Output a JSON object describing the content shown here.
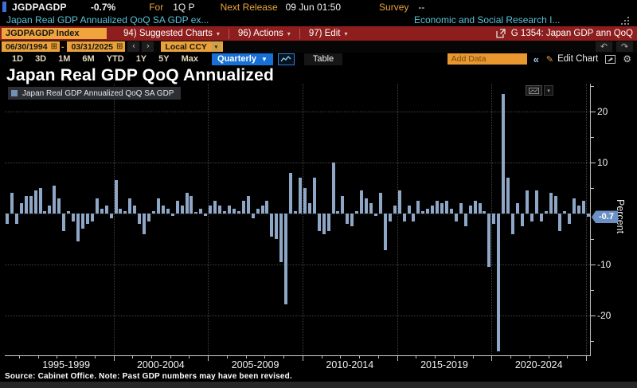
{
  "header": {
    "ticker": "JGDPAGDP",
    "last_change": "-0.7%",
    "for_label": "For",
    "for_value": "1Q P",
    "next_release_label": "Next Release",
    "next_release_value": "09 Jun 01:50",
    "survey_label": "Survey",
    "survey_value": "--",
    "description": "Japan Real GDP Annualized QoQ SA GDP ex...",
    "source_org": "Economic and Social Research I..."
  },
  "menubar": {
    "ticker_box": "JGDPAGDP Index",
    "items": [
      "94) Suggested Charts",
      "96) Actions",
      "97) Edit"
    ],
    "chart_tag": "G 1354: Japan GDP ann QoQ"
  },
  "toolbar": {
    "date_from": "06/30/1994",
    "date_to": "03/31/2025",
    "currency": "Local CCY",
    "periods": [
      "1D",
      "3D",
      "1M",
      "6M",
      "YTD",
      "1Y",
      "5Y",
      "Max"
    ],
    "frequency": "Quarterly",
    "table_label": "Table",
    "add_data_placeholder": "Add Data",
    "edit_chart_label": "Edit Chart"
  },
  "chart": {
    "title": "Japan Real GDP QoQ Annualized",
    "legend": "Japan Real GDP Annualized QoQ SA GDP",
    "unit_label": "Percent",
    "last_badge": "-0.7",
    "source_note": "Source: Cabinet Office. Note: Past GDP numbers may have been revised."
  },
  "chart_data": {
    "type": "bar",
    "title": "Japan Real GDP QoQ Annualized",
    "ylabel": "Percent",
    "ylim": [
      -28,
      25.5
    ],
    "grid": true,
    "legend_position": "top-left",
    "y_gridlines": [
      20,
      10,
      0,
      -10,
      -20
    ],
    "y_labels": [
      {
        "v": 20,
        "t": "20"
      },
      {
        "v": 10,
        "t": "10"
      },
      {
        "v": -10,
        "t": "-10"
      },
      {
        "v": -20,
        "t": "-20"
      }
    ],
    "x_group_labels": [
      "1995-1999",
      "2000-2004",
      "2005-2009",
      "2010-2014",
      "2015-2019",
      "2020-2024"
    ],
    "year_boundary_indices": [
      23,
      43,
      63,
      83,
      103,
      123
    ],
    "start_period": "1994 Q2",
    "end_period": "2025 Q1",
    "frequency": "quarterly",
    "last_value": -0.7,
    "bar_color": "#8ea7c6",
    "values": [
      -2,
      4,
      -2,
      2,
      3.5,
      3.5,
      4.5,
      5,
      0.5,
      1.5,
      5.5,
      3,
      -3.5,
      0.5,
      -1.5,
      -5.5,
      -3,
      -2,
      -1.5,
      3,
      1,
      1.5,
      -1,
      6.5,
      1,
      0.5,
      3,
      1.5,
      -2,
      -4,
      -1.5,
      0.5,
      3,
      1.5,
      1,
      -0.5,
      2.5,
      1.5,
      4,
      3.5,
      0.3,
      1,
      -0.5,
      1.5,
      2.5,
      1.5,
      0.5,
      1.5,
      1,
      0.5,
      2.5,
      3.5,
      -1,
      1,
      1.5,
      2.5,
      -4.5,
      -5,
      -9.5,
      -17.8,
      8,
      0.5,
      7,
      5,
      2,
      7,
      -3.5,
      -4,
      -3.5,
      10,
      0.5,
      3.5,
      -2,
      -2.5,
      0.5,
      4.5,
      3,
      2,
      -0.5,
      4,
      -7.2,
      -1.5,
      1.5,
      4.5,
      -1.5,
      1.5,
      -1.5,
      2.5,
      0.5,
      1,
      1.5,
      2.5,
      2,
      2.5,
      1,
      -1.5,
      2,
      -2.5,
      1.5,
      2.5,
      2,
      0.5,
      -10.5,
      -2,
      -27,
      23.5,
      7,
      -4,
      2,
      -2.5,
      4.5,
      -1.5,
      4.5,
      -1.5,
      0.5,
      4,
      3.5,
      -3.5,
      0.5,
      -2,
      3,
      1.5,
      2.5,
      -0.7
    ]
  },
  "colors": {
    "accent_orange": "#e9a13a",
    "menubar_red": "#8e1d1d",
    "bar_blue": "#8ea7c6",
    "badge_blue": "#6b91c4",
    "highlight_blue": "#1670d6",
    "description_cyan": "#58c4da"
  }
}
